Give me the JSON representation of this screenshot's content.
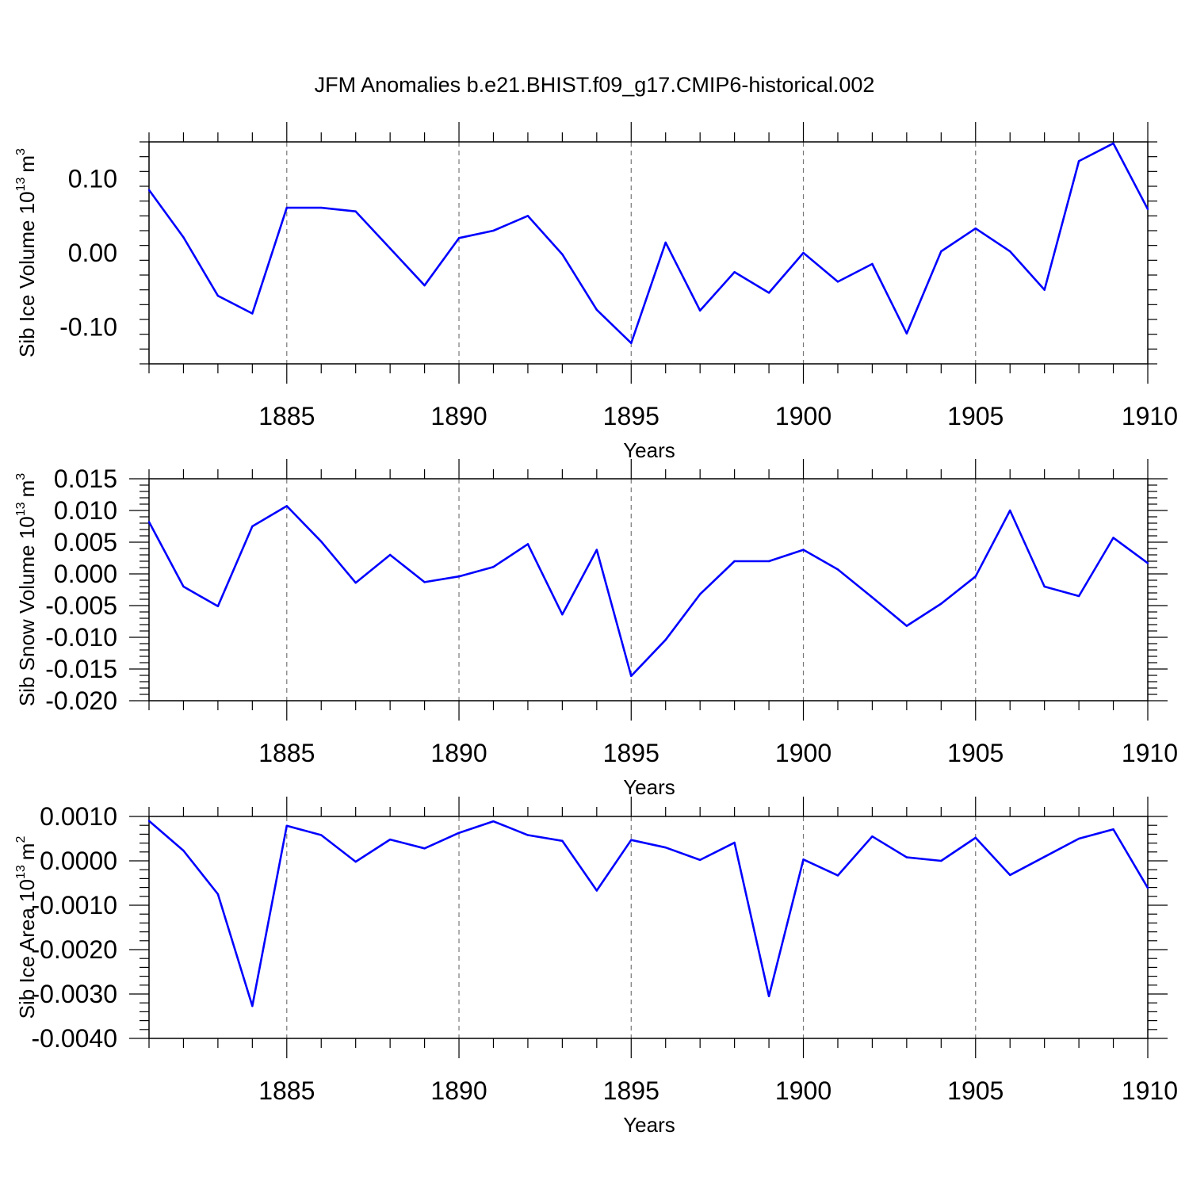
{
  "chart_data": {
    "title": "JFM Anomalies b.e21.BHIST.f09_g17.CMIP6-historical.002",
    "line_color": "#0000ff",
    "grid_lines": "dashed vertical at major x ticks",
    "panels": [
      {
        "type": "line",
        "ylabel_prefix": "Sib Ice Volume 10",
        "ylabel_exp": "13",
        "ylabel_unit": "m",
        "ylabel_unit_exp": "3",
        "xlabel": "Years",
        "x": [
          1881,
          1882,
          1883,
          1884,
          1885,
          1886,
          1887,
          1888,
          1889,
          1890,
          1891,
          1892,
          1893,
          1894,
          1895,
          1896,
          1897,
          1898,
          1899,
          1900,
          1901,
          1902,
          1903,
          1904,
          1905,
          1906,
          1907,
          1908,
          1909,
          1910
        ],
        "y": [
          0.085,
          0.021,
          -0.058,
          -0.082,
          0.061,
          0.061,
          0.056,
          0.006,
          -0.044,
          0.02,
          0.03,
          0.05,
          -0.002,
          -0.077,
          -0.122,
          0.014,
          -0.078,
          -0.026,
          -0.054,
          0.0,
          -0.039,
          -0.015,
          -0.109,
          0.002,
          0.033,
          0.002,
          -0.05,
          0.124,
          0.148,
          0.059
        ],
        "xlim": [
          1881,
          1910
        ],
        "ylim": [
          -0.15,
          0.15
        ],
        "xticks": [
          1885,
          1890,
          1895,
          1900,
          1905,
          1910
        ],
        "xtick_labels": [
          "1885",
          "1890",
          "1895",
          "1900",
          "1905",
          "1910"
        ],
        "yticks": [
          -0.1,
          0.0,
          0.1
        ],
        "ytick_labels": [
          "-0.10",
          "0.00",
          "0.10"
        ],
        "y_minor_step": 0.02
      },
      {
        "type": "line",
        "ylabel_prefix": "Sib Snow Volume 10",
        "ylabel_exp": "13",
        "ylabel_unit": "m",
        "ylabel_unit_exp": "3",
        "xlabel": "Years",
        "x": [
          1881,
          1882,
          1883,
          1884,
          1885,
          1886,
          1887,
          1888,
          1889,
          1890,
          1891,
          1892,
          1893,
          1894,
          1895,
          1896,
          1897,
          1898,
          1899,
          1900,
          1901,
          1902,
          1903,
          1904,
          1905,
          1906,
          1907,
          1908,
          1909,
          1910
        ],
        "y": [
          0.0082,
          -0.002,
          -0.0051,
          0.0075,
          0.0107,
          0.0051,
          -0.0014,
          0.003,
          -0.0013,
          -0.0004,
          0.0011,
          0.0047,
          -0.0064,
          0.0038,
          -0.0161,
          -0.0104,
          -0.0032,
          0.002,
          0.002,
          0.0038,
          0.0007,
          -0.0037,
          -0.0082,
          -0.0047,
          -0.0004,
          0.01,
          -0.002,
          -0.0035,
          0.0057,
          0.0017
        ],
        "xlim": [
          1881,
          1910
        ],
        "ylim": [
          -0.02,
          0.015
        ],
        "xticks": [
          1885,
          1890,
          1895,
          1900,
          1905,
          1910
        ],
        "xtick_labels": [
          "1885",
          "1890",
          "1895",
          "1900",
          "1905",
          "1910"
        ],
        "yticks": [
          -0.02,
          -0.015,
          -0.01,
          -0.005,
          0.0,
          0.005,
          0.01,
          0.015
        ],
        "ytick_labels": [
          "-0.020",
          "-0.015",
          "-0.010",
          "-0.005",
          "0.000",
          "0.005",
          "0.010",
          "0.015"
        ],
        "y_minor_step": 0.001
      },
      {
        "type": "line",
        "ylabel_prefix": "Sib Ice Area 10",
        "ylabel_exp": "13",
        "ylabel_unit": "m",
        "ylabel_unit_exp": "2",
        "xlabel": "Years",
        "x": [
          1881,
          1882,
          1883,
          1884,
          1885,
          1886,
          1887,
          1888,
          1889,
          1890,
          1891,
          1892,
          1893,
          1894,
          1895,
          1896,
          1897,
          1898,
          1899,
          1900,
          1901,
          1902,
          1903,
          1904,
          1905,
          1906,
          1907,
          1908,
          1909,
          1910
        ],
        "y": [
          0.0009,
          0.00023,
          -0.00075,
          -0.00327,
          0.00079,
          0.00058,
          -2e-05,
          0.00048,
          0.00028,
          0.00063,
          0.00089,
          0.00058,
          0.00045,
          -0.00067,
          0.00047,
          0.0003,
          2e-05,
          0.00041,
          -0.00305,
          3e-05,
          -0.00033,
          0.00055,
          8e-05,
          0.0,
          0.00052,
          -0.00032,
          9e-05,
          0.0005,
          0.00071,
          -0.00061
        ],
        "xlim": [
          1881,
          1910
        ],
        "ylim": [
          -0.004,
          0.001
        ],
        "xticks": [
          1885,
          1890,
          1895,
          1900,
          1905,
          1910
        ],
        "xtick_labels": [
          "1885",
          "1890",
          "1895",
          "1900",
          "1905",
          "1910"
        ],
        "yticks": [
          -0.004,
          -0.003,
          -0.002,
          -0.001,
          0.0,
          0.001
        ],
        "ytick_labels": [
          "-0.0040",
          "-0.0030",
          "-0.0020",
          "-0.0010",
          "0.0000",
          "0.0010"
        ],
        "y_minor_step": 0.0002
      }
    ]
  }
}
